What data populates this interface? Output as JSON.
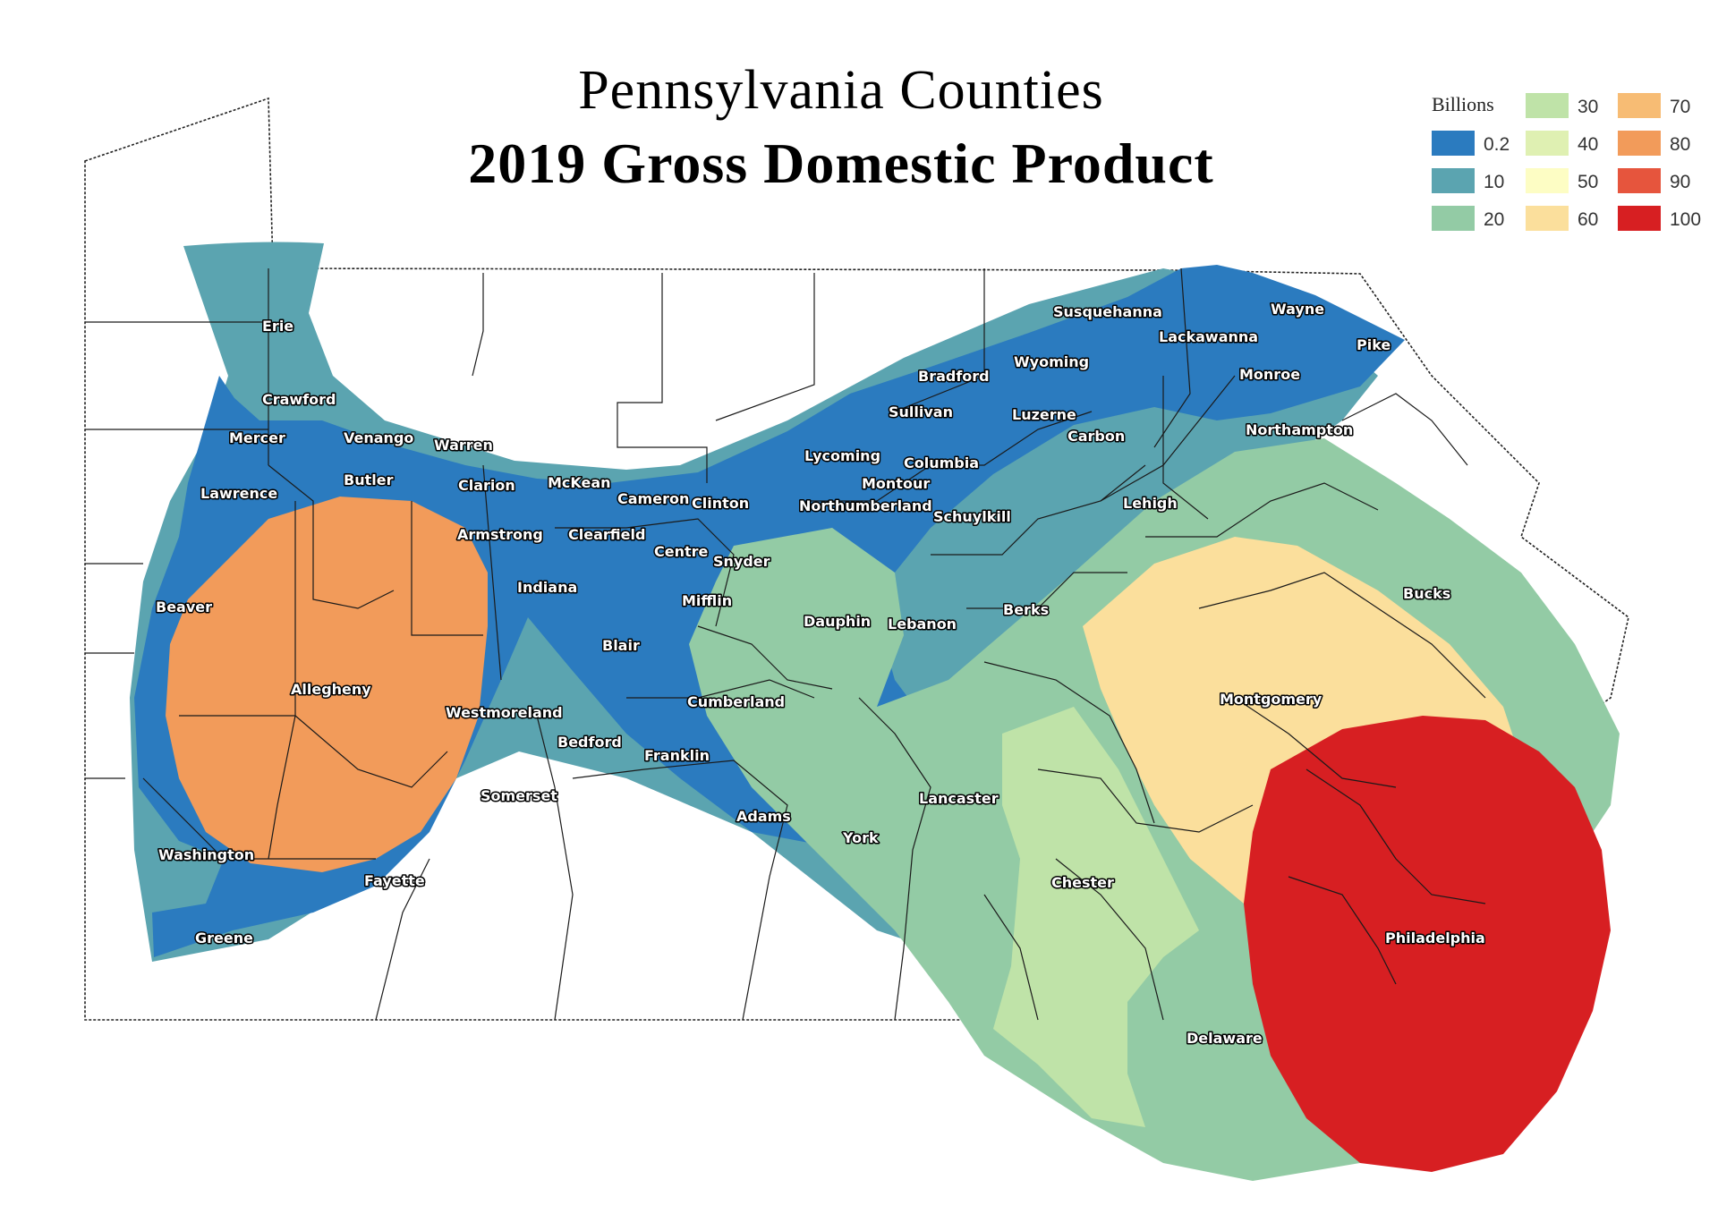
{
  "title": {
    "line1": "Pennsylvania Counties",
    "line2": "2019 Gross Domestic Product"
  },
  "legend": {
    "title": "Billions",
    "items": [
      {
        "label": "0.2",
        "color": "#2b7bbf"
      },
      {
        "label": "10",
        "color": "#5ba4b0"
      },
      {
        "label": "20",
        "color": "#93cba5"
      },
      {
        "label": "30",
        "color": "#bfe3a8"
      },
      {
        "label": "40",
        "color": "#dff0b2"
      },
      {
        "label": "50",
        "color": "#fdfdc4"
      },
      {
        "label": "60",
        "color": "#fbdf9c"
      },
      {
        "label": "70",
        "color": "#f7bc74"
      },
      {
        "label": "80",
        "color": "#f29b5a"
      },
      {
        "label": "90",
        "color": "#e6553d"
      },
      {
        "label": "100",
        "color": "#d71f22"
      }
    ]
  },
  "counties": [
    "Erie",
    "Crawford",
    "Mercer",
    "Venango",
    "Warren",
    "Lawrence",
    "Butler",
    "Clarion",
    "McKean",
    "Cameron",
    "Clinton",
    "Armstrong",
    "Clearfield",
    "Centre",
    "Snyder",
    "Indiana",
    "Beaver",
    "Mifflin",
    "Allegheny",
    "Blair",
    "Westmoreland",
    "Cumberland",
    "Bedford",
    "Franklin",
    "Somerset",
    "Adams",
    "Washington",
    "Fayette",
    "Greene",
    "Susquehanna",
    "Wayne",
    "Lackawanna",
    "Pike",
    "Wyoming",
    "Bradford",
    "Monroe",
    "Sullivan",
    "Luzerne",
    "Carbon",
    "Northampton",
    "Lycoming",
    "Columbia",
    "Montour",
    "Northumberland",
    "Schuylkill",
    "Lehigh",
    "Dauphin",
    "Lebanon",
    "Berks",
    "Bucks",
    "Montgomery",
    "Lancaster",
    "York",
    "Chester",
    "Philadelphia",
    "Delaware"
  ]
}
